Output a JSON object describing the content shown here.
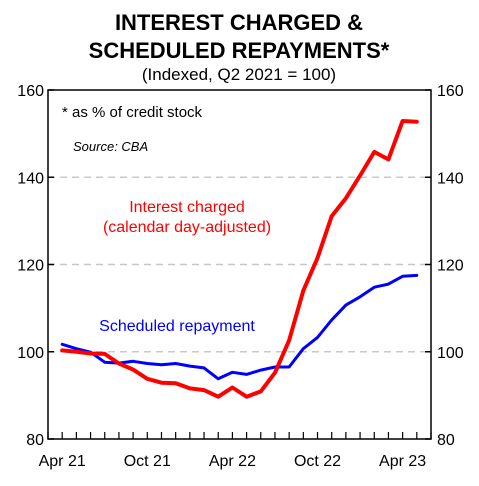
{
  "chart_data": {
    "type": "line",
    "title_lines": [
      "INTEREST CHARGED &",
      "SCHEDULED REPAYMENTS*"
    ],
    "subtitle": "(Indexed, Q2 2021 = 100)",
    "footnote": "*   as % of credit stock",
    "source": "Source: CBA",
    "x_tick_labels": [
      "Apr 21",
      "Oct 21",
      "Apr 22",
      "Oct 22",
      "Apr 23"
    ],
    "x_range_months": [
      "2021-03",
      "2023-06"
    ],
    "ylim": [
      80,
      160
    ],
    "y_ticks": [
      "80",
      "100",
      "120",
      "140",
      "160"
    ],
    "y2_ticks": [
      "80",
      "100",
      "120",
      "140",
      "160"
    ],
    "grid": "horizontal dashed",
    "series": [
      {
        "name": "Interest charged\n(calendar day-adjusted)",
        "color": "#ff0000",
        "x": [
          "2021-04",
          "2021-05",
          "2021-06",
          "2021-07",
          "2021-08",
          "2021-09",
          "2021-10",
          "2021-11",
          "2021-12",
          "2022-01",
          "2022-02",
          "2022-03",
          "2022-04",
          "2022-05",
          "2022-06",
          "2022-07",
          "2022-08",
          "2022-09",
          "2022-10",
          "2022-11",
          "2022-12",
          "2023-01",
          "2023-02",
          "2023-03",
          "2023-04",
          "2023-05"
        ],
        "values": [
          100.3,
          100,
          99.6,
          99.5,
          97.3,
          95.9,
          93.8,
          92.9,
          92.8,
          91.6,
          91.2,
          89.7,
          91.8,
          89.7,
          90.9,
          95.2,
          102.6,
          114.0,
          121.5,
          131.1,
          135.2,
          140.4,
          145.8,
          144.1,
          152.9,
          152.7
        ]
      },
      {
        "name": "Scheduled repayment",
        "color": "#0000ff",
        "x": [
          "2021-04",
          "2021-05",
          "2021-06",
          "2021-07",
          "2021-08",
          "2021-09",
          "2021-10",
          "2021-11",
          "2021-12",
          "2022-01",
          "2022-02",
          "2022-03",
          "2022-04",
          "2022-05",
          "2022-06",
          "2022-07",
          "2022-08",
          "2022-09",
          "2022-10",
          "2022-11",
          "2022-12",
          "2023-01",
          "2023-02",
          "2023-03",
          "2023-04",
          "2023-05"
        ],
        "values": [
          101.7,
          100.7,
          99.9,
          97.6,
          97.4,
          97.8,
          97.3,
          97.0,
          97.3,
          96.7,
          96.3,
          93.8,
          95.3,
          94.8,
          95.8,
          96.5,
          96.5,
          100.7,
          103.3,
          107.3,
          110.7,
          112.6,
          114.8,
          115.5,
          117.3,
          117.5
        ]
      }
    ]
  }
}
